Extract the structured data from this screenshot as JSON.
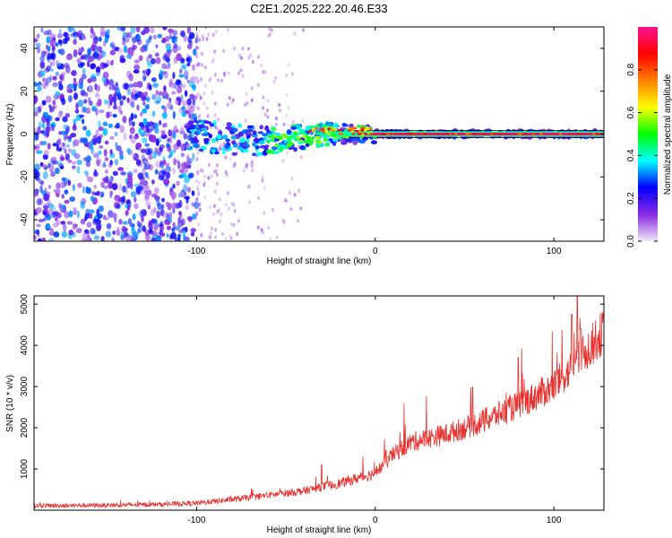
{
  "title": "C2E1.2025.222.20.46.E33",
  "chart_data": [
    {
      "type": "heatmap",
      "xlabel": "Height of straight line (km)",
      "ylabel": "Frequency (Hz)",
      "xlim": [
        -191,
        128
      ],
      "ylim": [
        -50,
        50
      ],
      "x_ticks": [
        -100,
        0,
        100
      ],
      "y_ticks": [
        -40,
        -20,
        0,
        20,
        40
      ],
      "grid": false,
      "colorbar": {
        "label": "Normalized spectral amplitude",
        "range": [
          0,
          1
        ],
        "ticks": [
          0.0,
          0.2,
          0.4,
          0.6,
          0.8
        ],
        "colormap": [
          "#f0e6f8",
          "#8a2be2",
          "#0000ff",
          "#00ffff",
          "#00ff00",
          "#ffff00",
          "#ff8000",
          "#ff0000",
          "#ff1493"
        ]
      },
      "signal_band": {
        "frequency": 0,
        "x_start": -104,
        "x_end": 128,
        "amplitude": 0.95
      },
      "noise_region": {
        "x_start": -191,
        "x_end": -100,
        "amplitude_range": [
          0.05,
          0.35
        ]
      }
    },
    {
      "type": "line",
      "xlabel": "Height of straight line (km)",
      "ylabel": "SNR (10 * v/v)",
      "xlim": [
        -191,
        128
      ],
      "ylim": [
        0,
        5200
      ],
      "x_ticks": [
        -100,
        0,
        100
      ],
      "y_ticks": [
        1000,
        2000,
        3000,
        4000,
        5000
      ],
      "grid": false,
      "series": [
        {
          "color": "#e8312f",
          "trend_x": [
            -191,
            -150,
            -120,
            -100,
            -80,
            -60,
            -40,
            -20,
            0,
            10,
            20,
            40,
            60,
            80,
            100,
            110,
            120,
            128
          ],
          "trend_y": [
            110,
            120,
            140,
            170,
            260,
            360,
            470,
            650,
            900,
            1350,
            1650,
            1850,
            2150,
            2550,
            3000,
            3450,
            3950,
            4350
          ],
          "peaks": [
            [
              -30,
              1100
            ],
            [
              0,
              900
            ],
            [
              6,
              1450
            ],
            [
              80,
              3700
            ],
            [
              110,
              4750
            ],
            [
              113,
              5200
            ],
            [
              115,
              4400
            ]
          ]
        }
      ]
    }
  ]
}
